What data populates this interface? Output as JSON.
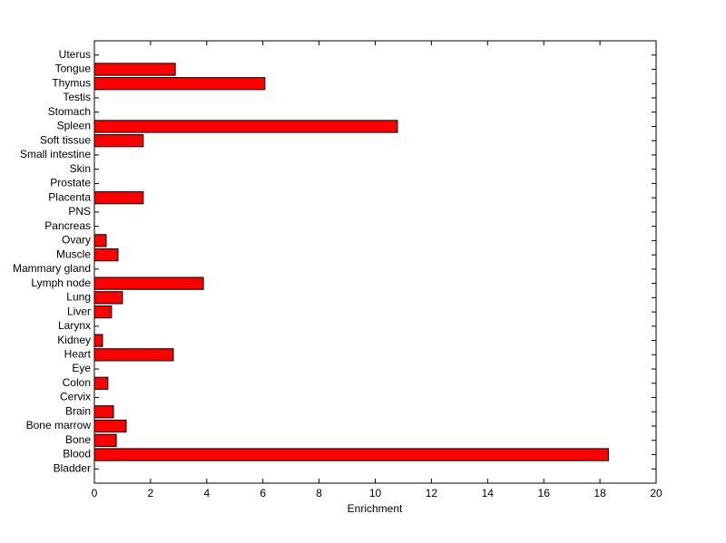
{
  "chart_data": {
    "type": "barh",
    "xlabel": "Enrichment",
    "categories": [
      "Bladder",
      "Blood",
      "Bone",
      "Bone marrow",
      "Brain",
      "Cervix",
      "Colon",
      "Eye",
      "Heart",
      "Kidney",
      "Larynx",
      "Liver",
      "Lung",
      "Lymph node",
      "Mammary gland",
      "Muscle",
      "Ovary",
      "Pancreas",
      "PNS",
      "Placenta",
      "Prostate",
      "Skin",
      "Small intestine",
      "Soft tissue",
      "Spleen",
      "Stomach",
      "Testis",
      "Thymus",
      "Tongue",
      "Uterus"
    ],
    "values": [
      0,
      18.3,
      0.78,
      1.13,
      0.68,
      0,
      0.48,
      0,
      2.81,
      0.29,
      0,
      0.61,
      1.0,
      3.88,
      0,
      0.84,
      0.42,
      0,
      0,
      1.74,
      0,
      0,
      0,
      1.74,
      10.79,
      0,
      0,
      6.07,
      2.88,
      0
    ],
    "color": "#ff0000",
    "xlim": [
      0,
      20
    ],
    "xticks": [
      0,
      2,
      4,
      6,
      8,
      10,
      12,
      14,
      16,
      18,
      20
    ],
    "grid": false
  }
}
